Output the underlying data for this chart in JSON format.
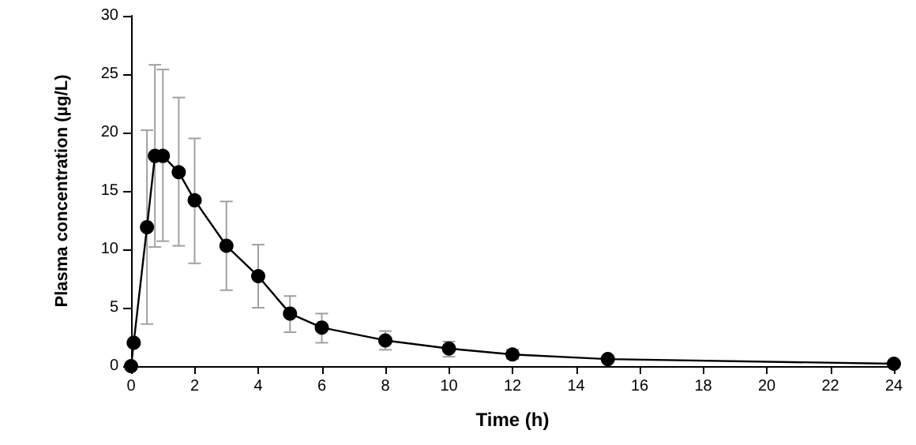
{
  "chart_data": {
    "type": "line",
    "xlabel": "Time (h)",
    "ylabel": "Plasma concentration (µg/L)",
    "x": [
      0,
      0.083,
      0.5,
      0.75,
      1,
      1.5,
      2,
      3,
      4,
      5,
      6,
      8,
      10,
      12,
      15,
      24
    ],
    "values": [
      0,
      2,
      11.9,
      18,
      18,
      16.6,
      14.2,
      10.3,
      7.7,
      4.5,
      3.3,
      2.2,
      1.5,
      1.0,
      0.6,
      0.2
    ],
    "errors": [
      null,
      null,
      [
        3.6,
        20.2
      ],
      [
        10.2,
        25.8
      ],
      [
        10.7,
        25.4
      ],
      [
        10.3,
        23
      ],
      [
        8.8,
        19.5
      ],
      [
        6.5,
        14.1
      ],
      [
        5,
        10.4
      ],
      [
        2.9,
        6
      ],
      [
        2.0,
        4.5
      ],
      [
        1.4,
        3.0
      ],
      [
        0.8,
        2.1
      ],
      [
        0.6,
        1.4
      ],
      null,
      null
    ],
    "color": "#000000",
    "xlim": [
      0,
      24
    ],
    "xticks": [
      0,
      2,
      4,
      6,
      8,
      10,
      12,
      14,
      16,
      18,
      20,
      22,
      24
    ],
    "ylim": [
      0,
      30
    ],
    "yticks": [
      0,
      5,
      10,
      15,
      20,
      25,
      30
    ],
    "grid": false,
    "marker": "circle",
    "line_style": "solid"
  }
}
